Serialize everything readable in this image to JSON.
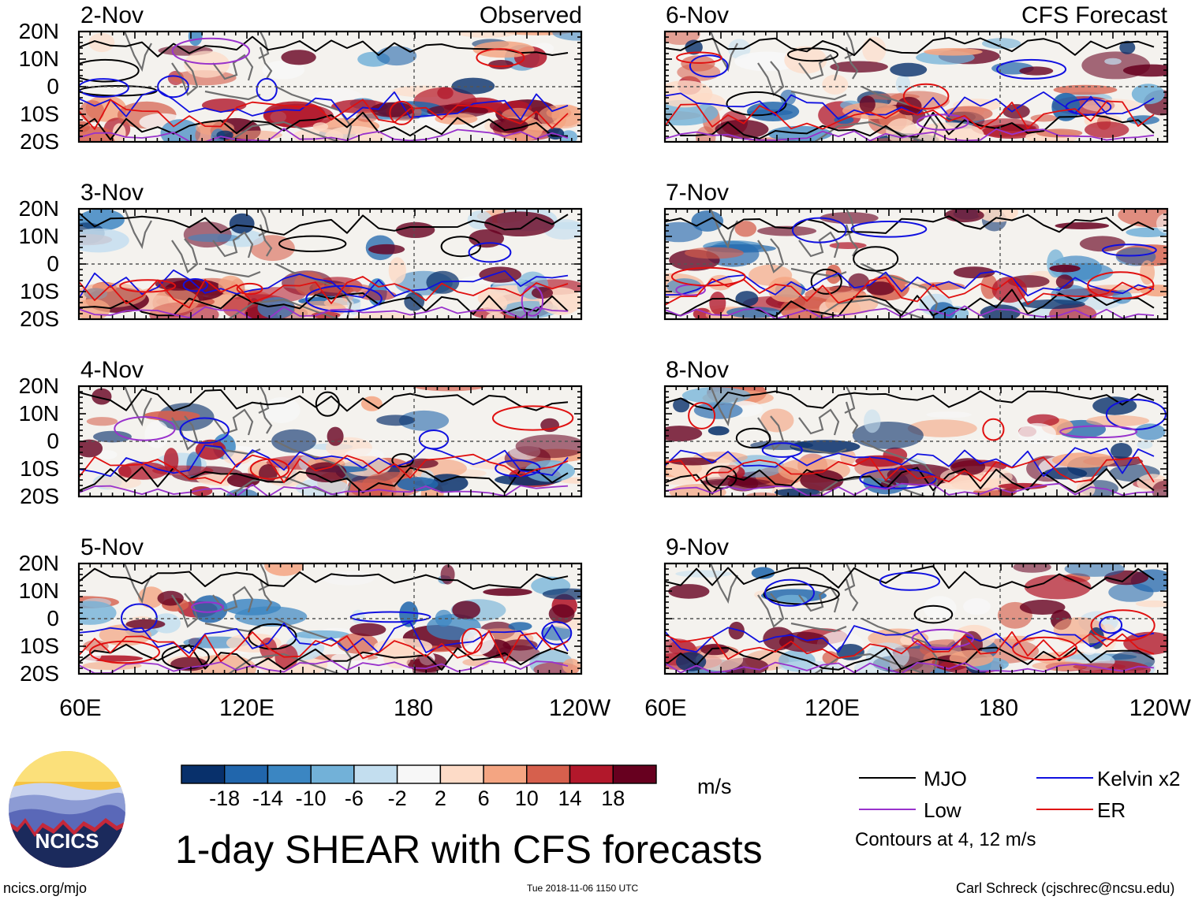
{
  "colors": {
    "mjo": "#000000",
    "low": "#9932cc",
    "kelvin": "#1010e0",
    "er": "#e01010",
    "coast": "#707070",
    "scale": [
      "#08306b",
      "#2166ac",
      "#3b86c2",
      "#72b1d8",
      "#c3deef",
      "#f7f7f7",
      "#fddbc7",
      "#f4a582",
      "#d6604d",
      "#b2182b",
      "#67001f"
    ],
    "logo_sky": "#f6c342",
    "logo_navy": "#1b2a5c"
  },
  "left_panels": [
    {
      "date": "2-Nov",
      "header": "Observed"
    },
    {
      "date": "3-Nov"
    },
    {
      "date": "4-Nov"
    },
    {
      "date": "5-Nov"
    }
  ],
  "right_panels": [
    {
      "date": "6-Nov",
      "header": "CFS Forecast"
    },
    {
      "date": "7-Nov"
    },
    {
      "date": "8-Nov"
    },
    {
      "date": "9-Nov"
    }
  ],
  "lat_labels": [
    "20N",
    "10N",
    "0",
    "10S",
    "20S"
  ],
  "lon_labels": [
    "60E",
    "120E",
    "180",
    "120W"
  ],
  "colorbar": {
    "labels": [
      "-18",
      "-14",
      "-10",
      "-6",
      "-2",
      "2",
      "6",
      "10",
      "14",
      "18"
    ],
    "unit": "m/s"
  },
  "legend": {
    "items": [
      {
        "key": "mjo",
        "label": "MJO"
      },
      {
        "key": "kelvin",
        "label": "Kelvin x2"
      },
      {
        "key": "low",
        "label": "Low"
      },
      {
        "key": "er",
        "label": "ER"
      }
    ],
    "note": "Contours at 4, 12 m/s"
  },
  "logo": {
    "text": "NCICS"
  },
  "title": "1-day SHEAR with CFS forecasts",
  "footer": {
    "left": "ncics.org/mjo",
    "center": "Tue 2018-11-06 1150 UTC",
    "right": "Carl Schreck (cjschrec@ncsu.edu)"
  }
}
